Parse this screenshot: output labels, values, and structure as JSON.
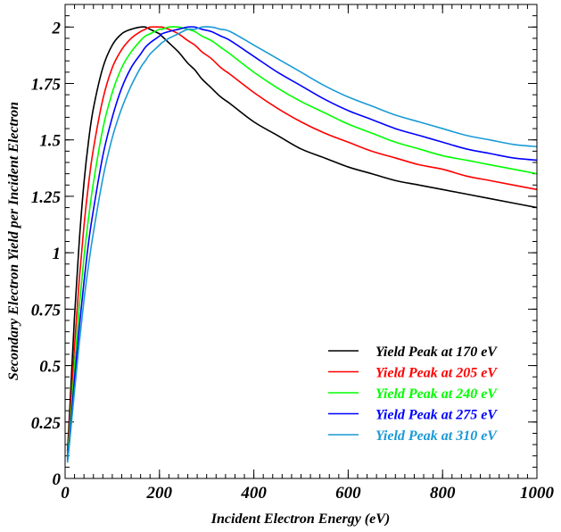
{
  "chart_data": {
    "type": "line",
    "title": "",
    "xlabel": "Incident Electron Energy (eV)",
    "ylabel": "Secondary Electron Yield per Incident Electron",
    "xlim": [
      0,
      1000
    ],
    "ylim": [
      0,
      2.1
    ],
    "x_ticks": [
      0,
      200,
      400,
      600,
      800,
      1000
    ],
    "x_tick_labels": [
      "0",
      "200",
      "400",
      "600",
      "800",
      "1000"
    ],
    "y_ticks": [
      0,
      0.25,
      0.5,
      0.75,
      1,
      1.25,
      1.5,
      1.75,
      2
    ],
    "y_tick_labels": [
      "0",
      "0.25",
      "0.5",
      "0.75",
      "1",
      "1.25",
      "1.5",
      "1.75",
      "2"
    ],
    "grid": false,
    "legend_position": "bottom-right",
    "x": [
      5,
      10,
      20,
      30,
      40,
      50,
      60,
      80,
      100,
      120,
      140,
      160,
      170,
      180,
      200,
      205,
      220,
      240,
      260,
      275,
      290,
      310,
      330,
      350,
      400,
      450,
      500,
      550,
      600,
      650,
      700,
      750,
      800,
      850,
      900,
      950,
      1000
    ],
    "series": [
      {
        "name": "Yield Peak at 170 eV",
        "color": "#000000",
        "values": [
          0.12,
          0.31,
          0.72,
          1.05,
          1.31,
          1.5,
          1.64,
          1.82,
          1.92,
          1.97,
          1.99,
          2.0,
          2.0,
          1.99,
          1.97,
          1.96,
          1.93,
          1.89,
          1.84,
          1.81,
          1.77,
          1.73,
          1.69,
          1.66,
          1.58,
          1.52,
          1.46,
          1.42,
          1.38,
          1.35,
          1.32,
          1.3,
          1.28,
          1.26,
          1.24,
          1.22,
          1.2
        ]
      },
      {
        "name": "Yield Peak at 205 eV",
        "color": "#ff0000",
        "values": [
          0.1,
          0.26,
          0.59,
          0.88,
          1.12,
          1.31,
          1.46,
          1.68,
          1.82,
          1.9,
          1.95,
          1.98,
          1.99,
          2.0,
          2.0,
          2.0,
          1.99,
          1.97,
          1.94,
          1.92,
          1.89,
          1.86,
          1.82,
          1.79,
          1.71,
          1.64,
          1.58,
          1.53,
          1.49,
          1.45,
          1.42,
          1.39,
          1.37,
          1.34,
          1.32,
          1.3,
          1.28
        ]
      },
      {
        "name": "Yield Peak at 240 eV",
        "color": "#00ff00",
        "values": [
          0.09,
          0.22,
          0.5,
          0.76,
          0.98,
          1.16,
          1.31,
          1.55,
          1.71,
          1.82,
          1.89,
          1.94,
          1.96,
          1.97,
          1.99,
          1.99,
          2.0,
          2.0,
          1.99,
          1.98,
          1.96,
          1.94,
          1.91,
          1.88,
          1.8,
          1.73,
          1.67,
          1.62,
          1.57,
          1.53,
          1.49,
          1.46,
          1.43,
          1.41,
          1.39,
          1.37,
          1.35
        ]
      },
      {
        "name": "Yield Peak at 275 eV",
        "color": "#0000ff",
        "values": [
          0.08,
          0.19,
          0.44,
          0.67,
          0.87,
          1.05,
          1.19,
          1.43,
          1.6,
          1.73,
          1.82,
          1.88,
          1.91,
          1.93,
          1.96,
          1.97,
          1.98,
          1.99,
          2.0,
          2.0,
          1.99,
          1.98,
          1.96,
          1.94,
          1.87,
          1.8,
          1.74,
          1.68,
          1.63,
          1.59,
          1.55,
          1.52,
          1.49,
          1.46,
          1.44,
          1.42,
          1.41
        ]
      },
      {
        "name": "Yield Peak at 310 eV",
        "color": "#1a9ad6",
        "values": [
          0.07,
          0.17,
          0.39,
          0.6,
          0.79,
          0.95,
          1.09,
          1.33,
          1.51,
          1.64,
          1.74,
          1.82,
          1.85,
          1.88,
          1.92,
          1.93,
          1.95,
          1.97,
          1.99,
          1.99,
          2.0,
          2.0,
          1.99,
          1.98,
          1.92,
          1.86,
          1.8,
          1.74,
          1.69,
          1.65,
          1.61,
          1.58,
          1.55,
          1.52,
          1.5,
          1.48,
          1.47
        ]
      }
    ]
  }
}
